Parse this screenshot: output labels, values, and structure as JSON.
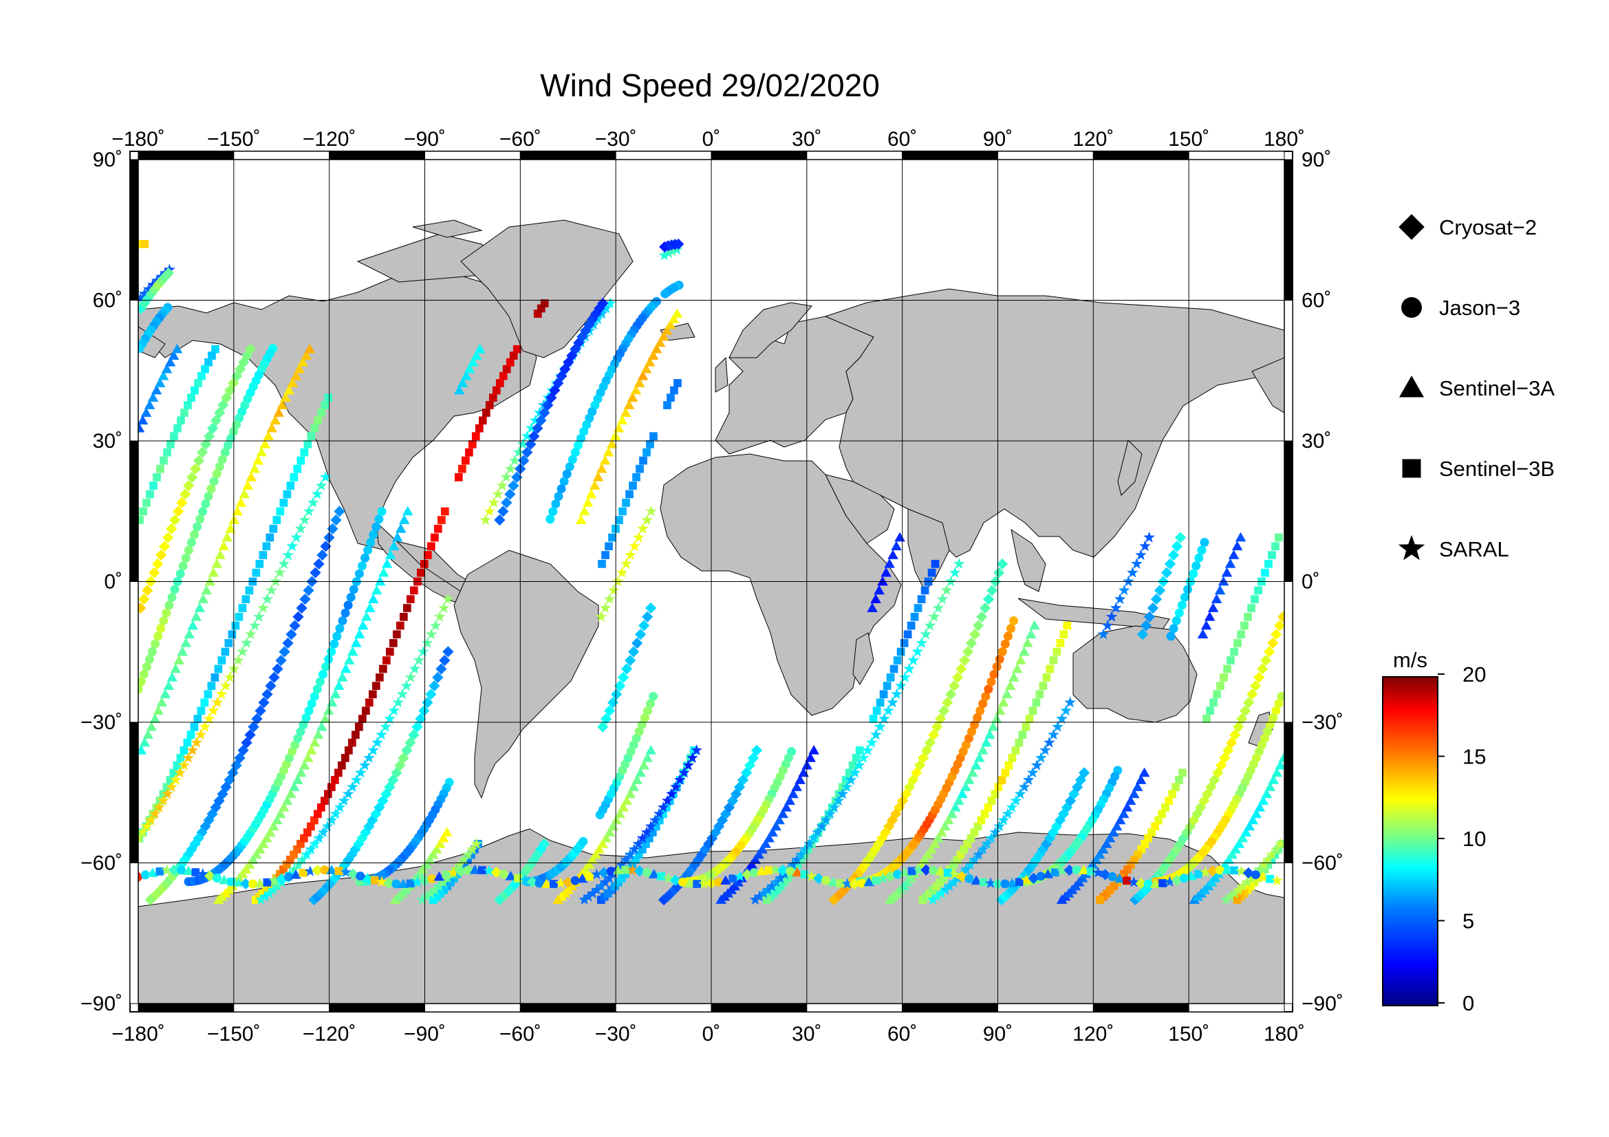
{
  "title": "Wind Speed 29/02/2020",
  "lon_ticks": [
    "−180˚",
    "−150˚",
    "−120˚",
    "−90˚",
    "−60˚",
    "−30˚",
    "0˚",
    "30˚",
    "60˚",
    "90˚",
    "120˚",
    "150˚",
    "180˚"
  ],
  "lat_ticks_left": [
    "90˚",
    "60˚",
    "30˚",
    "0˚",
    "−30˚",
    "−60˚",
    "−90˚"
  ],
  "lat_ticks_right": [
    "90˚",
    "60˚",
    "30˚",
    "0˚",
    "−30˚",
    "−60˚",
    "−90˚"
  ],
  "legend": [
    {
      "label": "Cryosat−2",
      "marker": "diamond"
    },
    {
      "label": "Jason−3",
      "marker": "circle"
    },
    {
      "label": "Sentinel−3A",
      "marker": "triangle"
    },
    {
      "label": "Sentinel−3B",
      "marker": "square"
    },
    {
      "label": "SARAL",
      "marker": "star"
    }
  ],
  "colorbar": {
    "unit": "m/s",
    "ticks": [
      "20",
      "15",
      "10",
      "5",
      "0"
    ],
    "range": [
      0,
      20
    ],
    "colors": [
      "#00007f",
      "#0000ff",
      "#007fff",
      "#00ffff",
      "#7fff7f",
      "#ffff00",
      "#ff7f00",
      "#ff0000",
      "#7f0000"
    ]
  },
  "colors": {
    "land": "#c0c0c0",
    "ocean": "#ffffff",
    "grid": "#000000"
  }
}
